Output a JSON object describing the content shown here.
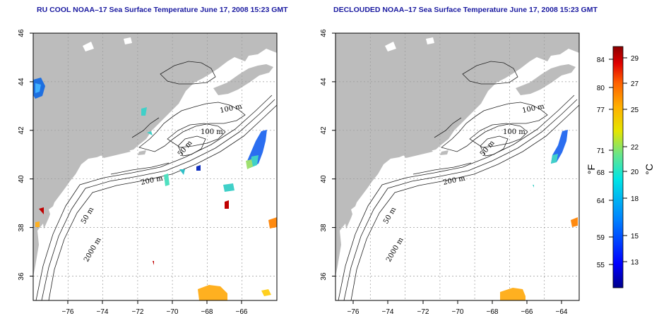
{
  "titles": {
    "left": "RU COOL NOAA–17 Sea Surface Temperature June 17, 2008 15:23 GMT",
    "right": "DECLOUDED NOAA–17 Sea Surface Temperature June 17, 2008 15:23 GMT"
  },
  "map": {
    "lon_range": [
      -77,
      -63
    ],
    "lat_range": [
      35,
      46
    ],
    "lon_ticks": [
      "−76",
      "−74",
      "−72",
      "−70",
      "−68",
      "−66",
      "−64"
    ],
    "lat_ticks": [
      "36",
      "38",
      "40",
      "42",
      "44",
      "46"
    ],
    "grid": "dotted",
    "land_color": "#bcbcbc",
    "ocean_color": "#ffffff"
  },
  "contour_labels": [
    "100 m",
    "100 m",
    "50 m",
    "200 m",
    "50 m",
    "2000 m"
  ],
  "colorbar": {
    "left_unit": "°F",
    "right_unit": "°C",
    "fahrenheit_ticks": [
      "84",
      "80",
      "77",
      "71",
      "68",
      "64",
      "59",
      "55"
    ],
    "celsius_ticks": [
      "29",
      "27",
      "25",
      "22",
      "20",
      "18",
      "15",
      "13"
    ],
    "colors": [
      "#00008b",
      "#0000ff",
      "#0080ff",
      "#00e5e5",
      "#66e58c",
      "#e5e500",
      "#ffb000",
      "#ff6000",
      "#e00000",
      "#8b0000"
    ]
  }
}
